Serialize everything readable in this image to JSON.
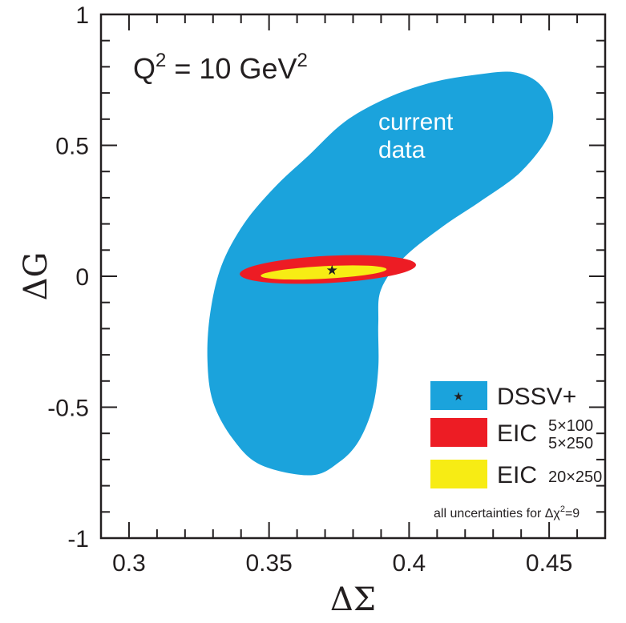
{
  "chart_data": {
    "type": "scatter",
    "title": "",
    "xlabel": "ΔΣ",
    "ylabel": "ΔG",
    "xlim": [
      0.29,
      0.47
    ],
    "ylim": [
      -1,
      1
    ],
    "grid": false,
    "x_ticks": [
      0.3,
      0.35,
      0.4,
      0.45
    ],
    "x_tick_labels": [
      "0.3",
      "0.35",
      "0.4",
      "0.45"
    ],
    "y_ticks": [
      -1,
      -0.5,
      0,
      0.5,
      1
    ],
    "y_tick_labels": [
      "-1",
      "-0.5",
      "0",
      "0.5",
      "1"
    ],
    "annotations": {
      "q2_prefix": "Q",
      "q2_sup": "2",
      "q2_mid": " = 10 GeV",
      "q2_sup2": "2",
      "region_line1": "current",
      "region_line2": "data",
      "uncertainty_prefix": "all uncertainties for Δχ",
      "uncertainty_sup": "2",
      "uncertainty_suffix": "=9"
    },
    "legend": {
      "position": "bottom-right",
      "entries": [
        {
          "label": "DSSV+",
          "sub_top": "",
          "sub_bottom": "",
          "color": "#1ba3dc",
          "marker": "★"
        },
        {
          "label": "EIC",
          "sub_top": "5×100",
          "sub_bottom": "5×250",
          "color": "#ed1c24"
        },
        {
          "label": "EIC",
          "sub_top": "20×250",
          "sub_bottom": "",
          "color": "#f7ec14"
        }
      ]
    },
    "series": [
      {
        "name": "current data",
        "color": "#1ba3dc",
        "kind": "region",
        "x": [
          0.365,
          0.347,
          0.337,
          0.33,
          0.328,
          0.329,
          0.333,
          0.341,
          0.352,
          0.364,
          0.377,
          0.392,
          0.408,
          0.424,
          0.437,
          0.446,
          0.451,
          0.45,
          0.44,
          0.426,
          0.412,
          0.398,
          0.39,
          0.389,
          0.389,
          0.387,
          0.382,
          0.375,
          0.365
        ],
        "y": [
          -0.76,
          -0.72,
          -0.62,
          -0.48,
          -0.32,
          -0.14,
          0.04,
          0.2,
          0.34,
          0.46,
          0.59,
          0.68,
          0.74,
          0.77,
          0.78,
          0.74,
          0.65,
          0.54,
          0.4,
          0.29,
          0.19,
          0.07,
          -0.05,
          -0.18,
          -0.35,
          -0.5,
          -0.63,
          -0.71,
          -0.76
        ]
      },
      {
        "name": "EIC 5×100 / 5×250",
        "color": "#ed1c24",
        "kind": "ellipse",
        "center": [
          0.371,
          0.026
        ],
        "half_width": 0.0315,
        "half_height": 0.052,
        "tilt_deg": 3
      },
      {
        "name": "EIC 20×250",
        "color": "#f7ec14",
        "kind": "ellipse",
        "center": [
          0.3695,
          0.0145
        ],
        "half_width": 0.0225,
        "half_height": 0.024,
        "tilt_deg": 3
      },
      {
        "name": "DSSV+",
        "color": "#231f20",
        "kind": "point",
        "x": [
          0.3725
        ],
        "y": [
          0.025
        ]
      }
    ]
  }
}
